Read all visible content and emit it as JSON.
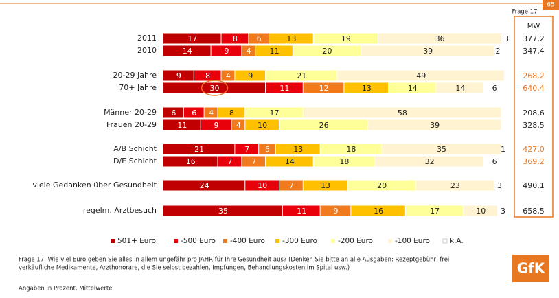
{
  "page_number": "65",
  "question_ref": "Frage 17",
  "chart_data": {
    "type": "bar",
    "orientation": "horizontal",
    "stacked": true,
    "categories": [
      "2011",
      "2010",
      "20-29 Jahre",
      "70+ Jahre",
      "Männer 20-29",
      "Frauen 20-29",
      "A/B Schicht",
      "D/E Schicht",
      "viele Gedanken über Gesundheit",
      "regelm. Arztbesuch"
    ],
    "xlim": [
      0,
      100
    ],
    "series": [
      {
        "name": "501+ Euro",
        "color": "#c00000",
        "values": [
          17,
          14,
          9,
          30,
          6,
          11,
          21,
          16,
          24,
          35
        ]
      },
      {
        "name": "-500 Euro",
        "color": "#e8000b",
        "values": [
          8,
          9,
          8,
          11,
          6,
          9,
          7,
          7,
          10,
          11
        ]
      },
      {
        "name": "-400 Euro",
        "color": "#f07a1e",
        "values": [
          6,
          4,
          4,
          12,
          4,
          4,
          5,
          7,
          7,
          9
        ]
      },
      {
        "name": "-300 Euro",
        "color": "#ffc000",
        "values": [
          13,
          11,
          9,
          13,
          8,
          10,
          13,
          14,
          13,
          16
        ]
      },
      {
        "name": "-200 Euro",
        "color": "#ffff99",
        "values": [
          19,
          20,
          21,
          14,
          17,
          26,
          18,
          18,
          20,
          17
        ]
      },
      {
        "name": "-100 Euro",
        "color": "#fff3d2",
        "values": [
          36,
          39,
          49,
          14,
          58,
          39,
          35,
          32,
          23,
          10
        ]
      },
      {
        "name": "k.A.",
        "color": "#ffffff",
        "values": [
          3,
          2,
          null,
          6,
          null,
          null,
          1,
          6,
          3,
          3
        ]
      }
    ],
    "legend": "bottom"
  },
  "mw": {
    "header": "MW",
    "values": [
      377.2,
      347.4,
      268.2,
      640.4,
      208.6,
      328.5,
      427.0,
      369.2,
      490.1,
      658.5
    ],
    "value_labels": [
      "377,2",
      "347,4",
      "268,2",
      "640,4",
      "208,6",
      "328,5",
      "427,0",
      "369,2",
      "490,1",
      "658,5"
    ],
    "colors": [
      "#222222",
      "#222222",
      "#e87722",
      "#e87722",
      "#222222",
      "#222222",
      "#e87722",
      "#e87722",
      "#222222",
      "#222222"
    ]
  },
  "footer": {
    "question_lines": [
      "Frage 17: Wie viel Euro geben Sie alles in allem ungefähr pro JAHR für Ihre Gesundheit aus? (Denken Sie bitte an alle Ausgaben: Rezeptgebühr, frei",
      "verkäufliche Medikamente, Arzthonorare, die Sie selbst bezahlen, Impfungen, Behandlungskosten im Spital usw.)"
    ],
    "note": "Angaben in Prozent, Mittelwerte",
    "logo": "GfK"
  }
}
